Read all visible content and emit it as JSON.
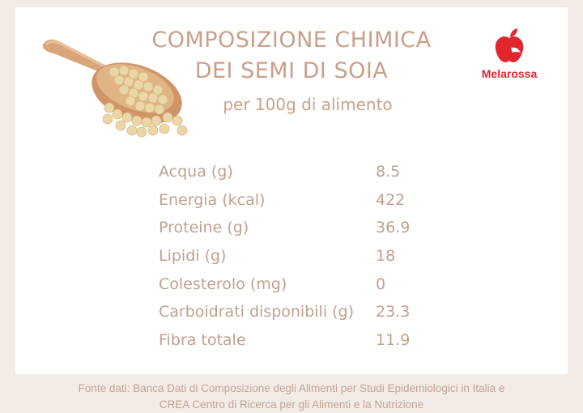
{
  "header": {
    "title_line1": "COMPOSIZIONE CHIMICA",
    "title_line2": "DEI SEMI DI SOIA",
    "subtitle": "per 100g di alimento"
  },
  "brand": {
    "name": "Melarossa",
    "icon": "apple-icon",
    "color": "#e3262e"
  },
  "nutrition": {
    "rows": [
      {
        "label": "Acqua (g)",
        "value": "8.5"
      },
      {
        "label": "Energia (kcal)",
        "value": "422"
      },
      {
        "label": "Proteine (g)",
        "value": "36.9"
      },
      {
        "label": "Lipidi (g)",
        "value": "18"
      },
      {
        "label": "Colesterolo (mg)",
        "value": "0"
      },
      {
        "label": "Carboidrati disponibili (g)",
        "value": "23.3"
      },
      {
        "label": "Fibra totale",
        "value": "11.9"
      }
    ]
  },
  "footer": {
    "line1": "Fonte dati: Banca Dati di Composizione degli Alimenti per Studi Epidemiologici in Italia e",
    "line2": "CREA Centro di Ricerca per gli Alimenti e la Nutrizione"
  },
  "colors": {
    "text_accent": "#c9a08a",
    "background": "#f3ebe6"
  }
}
